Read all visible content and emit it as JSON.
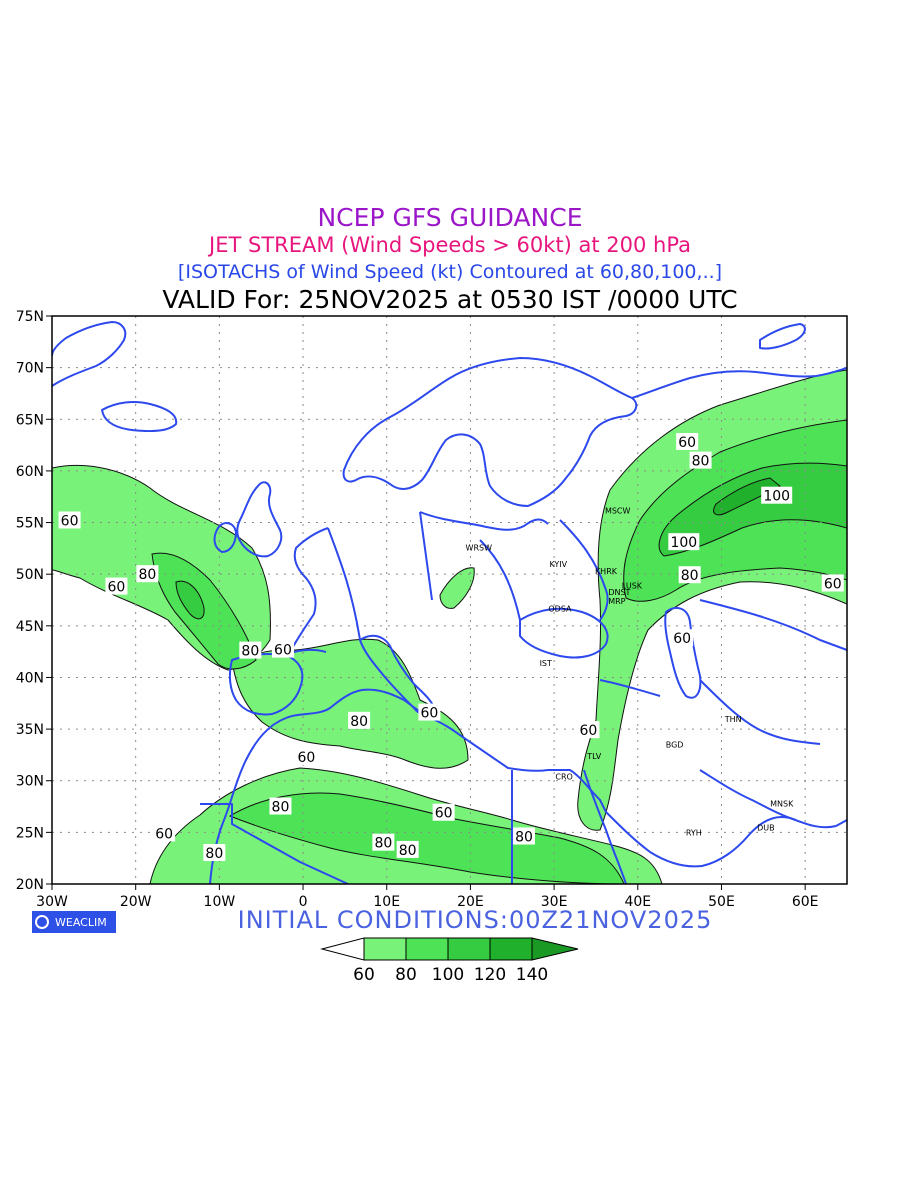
{
  "title": {
    "line1": "NCEP GFS GUIDANCE",
    "line2": "JET STREAM (Wind Speeds > 60kt) at 200 hPa",
    "line3": "[ISOTACHS of Wind Speed (kt) Contoured at 60,80,100,..]",
    "line4": "VALID For: 25NOV2025 at 0530 IST /0000 UTC"
  },
  "initial_conditions": "INITIAL  CONDITIONS:00Z21NOV2025",
  "logo": {
    "text": "WEACLIM",
    "icon": "weaclim-logo-icon"
  },
  "axes": {
    "lon_labels": [
      "30W",
      "20W",
      "10W",
      "0",
      "10E",
      "20E",
      "30E",
      "40E",
      "50E",
      "60E"
    ],
    "lat_labels": [
      "75N",
      "70N",
      "65N",
      "60N",
      "55N",
      "50N",
      "45N",
      "40N",
      "35N",
      "30N",
      "25N",
      "20N"
    ],
    "lon_range": [
      -30,
      65
    ],
    "lat_range": [
      20,
      75
    ],
    "grid": true
  },
  "colors": {
    "coast": "#2d49ee",
    "c60": "#79f27a",
    "c80": "#4ee356",
    "c100": "#36cc41",
    "c120": "#20b02c",
    "c140": "#1a9a25"
  },
  "legend": {
    "ticks": [
      "60",
      "80",
      "100",
      "120",
      "140"
    ]
  },
  "contour_labels": [
    {
      "text": "60",
      "lon": -27.9,
      "lat": 55.2
    },
    {
      "text": "60",
      "lon": -22.3,
      "lat": 48.8
    },
    {
      "text": "80",
      "lon": -18.6,
      "lat": 50.0
    },
    {
      "text": "80",
      "lon": -6.3,
      "lat": 42.6
    },
    {
      "text": "60",
      "lon": -2.4,
      "lat": 42.7
    },
    {
      "text": "80",
      "lon": 6.7,
      "lat": 35.8
    },
    {
      "text": "60",
      "lon": 15.1,
      "lat": 36.6
    },
    {
      "text": "60",
      "lon": 0.4,
      "lat": 32.3
    },
    {
      "text": "80",
      "lon": -2.7,
      "lat": 27.5
    },
    {
      "text": "60",
      "lon": 16.8,
      "lat": 26.9
    },
    {
      "text": "80",
      "lon": 26.4,
      "lat": 24.6
    },
    {
      "text": "80",
      "lon": 9.6,
      "lat": 24.0
    },
    {
      "text": "80",
      "lon": 12.5,
      "lat": 23.3
    },
    {
      "text": "60",
      "lon": -16.6,
      "lat": 24.9
    },
    {
      "text": "80",
      "lon": -10.6,
      "lat": 23.0
    },
    {
      "text": "60",
      "lon": 34.1,
      "lat": 34.9
    },
    {
      "text": "60",
      "lon": 45.3,
      "lat": 43.8
    },
    {
      "text": "60",
      "lon": 45.9,
      "lat": 62.8
    },
    {
      "text": "80",
      "lon": 47.5,
      "lat": 61.0
    },
    {
      "text": "100",
      "lon": 56.6,
      "lat": 57.6
    },
    {
      "text": "100",
      "lon": 45.5,
      "lat": 53.1
    },
    {
      "text": "80",
      "lon": 46.2,
      "lat": 49.9
    },
    {
      "text": "60",
      "lon": 63.3,
      "lat": 49.1
    }
  ],
  "cities": [
    {
      "name": "WRSW",
      "lon": 21.0,
      "lat": 52.3
    },
    {
      "name": "KYIV",
      "lon": 30.5,
      "lat": 50.7
    },
    {
      "name": "KHRK",
      "lon": 36.2,
      "lat": 50.0
    },
    {
      "name": "MSCW",
      "lon": 37.6,
      "lat": 55.9
    },
    {
      "name": "LUSK",
      "lon": 39.3,
      "lat": 48.6
    },
    {
      "name": "DNST",
      "lon": 37.8,
      "lat": 48.0
    },
    {
      "name": "MRP",
      "lon": 37.5,
      "lat": 47.1
    },
    {
      "name": "ODSA",
      "lon": 30.7,
      "lat": 46.4
    },
    {
      "name": "IST",
      "lon": 29.0,
      "lat": 41.1
    },
    {
      "name": "THN",
      "lon": 51.4,
      "lat": 35.7
    },
    {
      "name": "BGD",
      "lon": 44.4,
      "lat": 33.2
    },
    {
      "name": "CRO",
      "lon": 31.2,
      "lat": 30.1
    },
    {
      "name": "TLV",
      "lon": 34.8,
      "lat": 32.1
    },
    {
      "name": "MNSK",
      "lon": 57.2,
      "lat": 27.5
    },
    {
      "name": "RYH",
      "lon": 46.7,
      "lat": 24.7
    },
    {
      "name": "DUB",
      "lon": 55.3,
      "lat": 25.2
    }
  ]
}
